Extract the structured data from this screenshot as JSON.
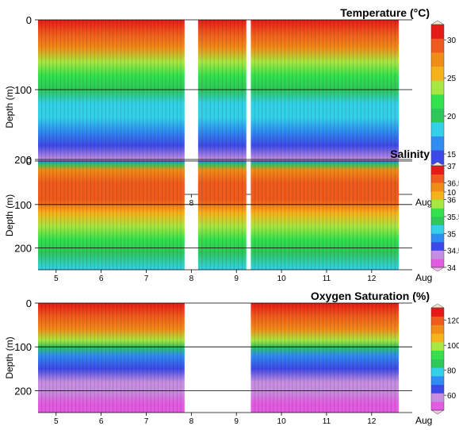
{
  "chart_data": [
    {
      "type": "heatmap",
      "title": "Temperature (°C)",
      "ylabel": "Depth (m)",
      "x_unit_label": "Aug",
      "xticks": [
        "5",
        "6",
        "7",
        "8",
        "9",
        "10",
        "11",
        "12"
      ],
      "yticks": [
        "0",
        "100",
        "200"
      ],
      "ylim": [
        250,
        0
      ],
      "xlim": [
        4.6,
        12.9
      ],
      "coverage_days": [
        [
          4.6,
          7.85
        ],
        [
          8.15,
          9.22
        ],
        [
          9.32,
          12.6
        ]
      ],
      "colorbar": {
        "ticks": [
          "10",
          "15",
          "20",
          "25",
          "30"
        ],
        "range": [
          10,
          32
        ]
      },
      "depth_profile": [
        {
          "depth": 0,
          "value": 31
        },
        {
          "depth": 20,
          "value": 30
        },
        {
          "depth": 40,
          "value": 27
        },
        {
          "depth": 60,
          "value": 24
        },
        {
          "depth": 80,
          "value": 22
        },
        {
          "depth": 100,
          "value": 20.5
        },
        {
          "depth": 120,
          "value": 19
        },
        {
          "depth": 140,
          "value": 17.5
        },
        {
          "depth": 160,
          "value": 16
        },
        {
          "depth": 180,
          "value": 14.5
        },
        {
          "depth": 200,
          "value": 13.5
        },
        {
          "depth": 220,
          "value": 12.5
        },
        {
          "depth": 250,
          "value": 11
        }
      ]
    },
    {
      "type": "heatmap",
      "title": "Salinity",
      "ylabel": "Depth (m)",
      "x_unit_label": "Aug",
      "xticks": [
        "5",
        "6",
        "7",
        "8",
        "9",
        "10",
        "11",
        "12"
      ],
      "yticks": [
        "0",
        "100",
        "200"
      ],
      "ylim": [
        250,
        0
      ],
      "xlim": [
        4.6,
        12.9
      ],
      "coverage_days": [
        [
          4.6,
          7.85
        ],
        [
          8.15,
          9.22
        ],
        [
          9.32,
          12.6
        ]
      ],
      "colorbar": {
        "ticks": [
          "34",
          "34.5",
          "35",
          "35.5",
          "36",
          "36.5",
          "37"
        ],
        "range": [
          34,
          37
        ]
      },
      "depth_profile": [
        {
          "depth": 0,
          "value": 34.8
        },
        {
          "depth": 8,
          "value": 35.4
        },
        {
          "depth": 20,
          "value": 36.4
        },
        {
          "depth": 50,
          "value": 36.6
        },
        {
          "depth": 90,
          "value": 36.6
        },
        {
          "depth": 120,
          "value": 36.2
        },
        {
          "depth": 150,
          "value": 35.9
        },
        {
          "depth": 180,
          "value": 35.6
        },
        {
          "depth": 210,
          "value": 35.35
        },
        {
          "depth": 250,
          "value": 35.2
        }
      ]
    },
    {
      "type": "heatmap",
      "title": "Oxygen Saturation (%)",
      "ylabel": "Depth (m)",
      "x_unit_label": "Aug",
      "xticks": [
        "5",
        "6",
        "7",
        "8",
        "9",
        "10",
        "11",
        "12"
      ],
      "yticks": [
        "0",
        "100",
        "200"
      ],
      "ylim": [
        250,
        0
      ],
      "xlim": [
        4.6,
        12.9
      ],
      "coverage_days": [
        [
          4.6,
          7.85
        ],
        [
          9.32,
          12.6
        ]
      ],
      "colorbar": {
        "ticks": [
          "60",
          "80",
          "100",
          "120"
        ],
        "range": [
          48,
          130
        ]
      },
      "depth_profile": [
        {
          "depth": 0,
          "value": 126
        },
        {
          "depth": 30,
          "value": 122
        },
        {
          "depth": 60,
          "value": 113
        },
        {
          "depth": 85,
          "value": 100
        },
        {
          "depth": 100,
          "value": 87
        },
        {
          "depth": 120,
          "value": 75
        },
        {
          "depth": 150,
          "value": 64
        },
        {
          "depth": 180,
          "value": 60
        },
        {
          "depth": 200,
          "value": 57
        },
        {
          "depth": 230,
          "value": 52
        },
        {
          "depth": 250,
          "value": 50
        }
      ]
    }
  ]
}
